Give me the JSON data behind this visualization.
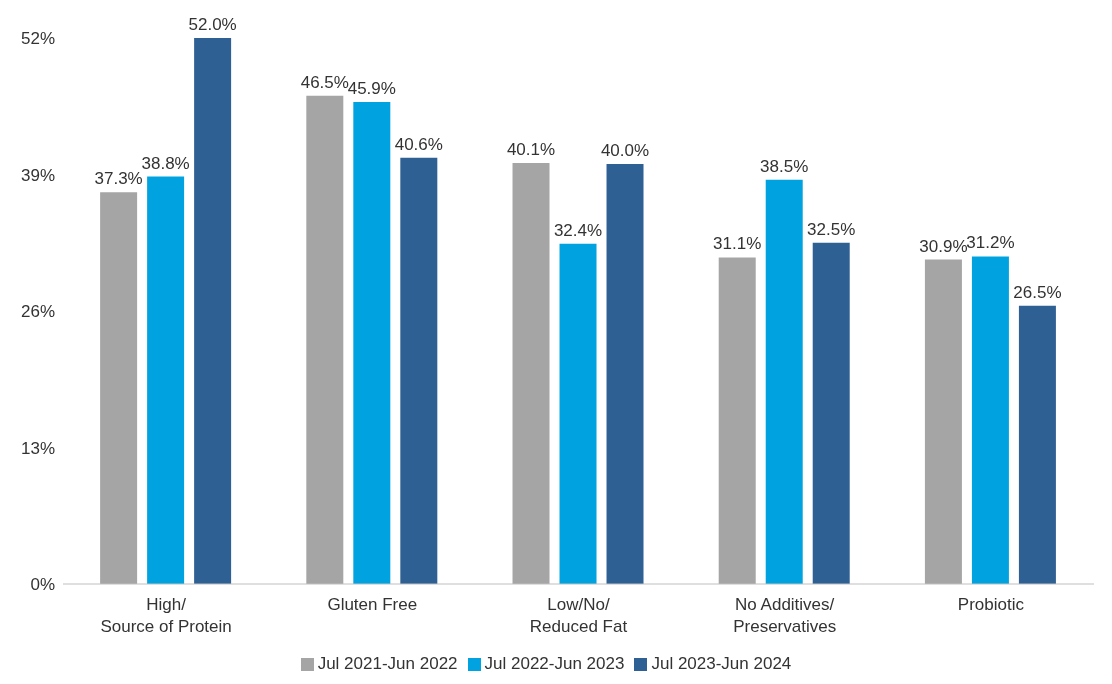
{
  "chart_data": {
    "type": "bar",
    "categories": [
      "High/\nSource of Protein",
      "Gluten Free",
      "Low/No/\nReduced Fat",
      "No Additives/\nPreservatives",
      "Probiotic"
    ],
    "series": [
      {
        "name": "Jul 2021-Jun 2022",
        "color": "#a5a5a5",
        "values": [
          37.3,
          46.5,
          40.1,
          31.1,
          30.9
        ],
        "value_labels": [
          "37.3%",
          "46.5%",
          "40.1%",
          "31.1%",
          "30.9%"
        ]
      },
      {
        "name": "Jul 2022-Jun 2023",
        "color": "#00a3e0",
        "values": [
          38.8,
          45.9,
          32.4,
          38.5,
          31.2
        ],
        "value_labels": [
          "38.8%",
          "45.9%",
          "32.4%",
          "38.5%",
          "31.2%"
        ]
      },
      {
        "name": "Jul 2023-Jun 2024",
        "color": "#2f6094",
        "values": [
          52.0,
          40.6,
          40.0,
          32.5,
          26.5
        ],
        "value_labels": [
          "52.0%",
          "40.6%",
          "40.0%",
          "32.5%",
          "26.5%"
        ]
      }
    ],
    "ylim": [
      0,
      52
    ],
    "yticks": [
      {
        "value": 0,
        "label": "0%"
      },
      {
        "value": 13,
        "label": "13%"
      },
      {
        "value": 26,
        "label": "26%"
      },
      {
        "value": 39,
        "label": "39%"
      },
      {
        "value": 52,
        "label": "52%"
      }
    ],
    "grid": false,
    "legend": "bottom"
  }
}
